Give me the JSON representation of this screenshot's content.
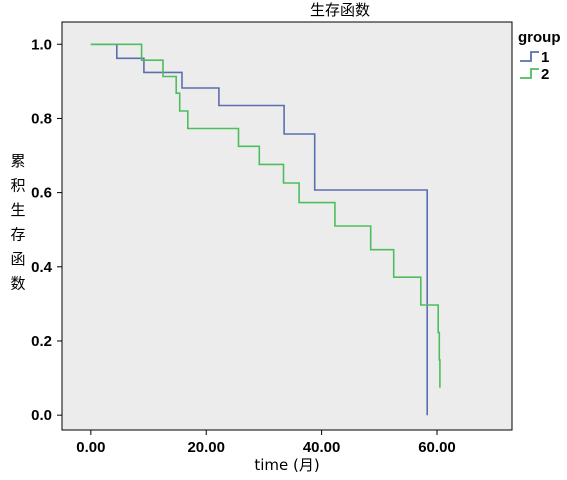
{
  "chart_data": {
    "type": "line",
    "title": "生存函数",
    "xlabel": "time (月)",
    "ylabel": "累积生存函数",
    "xlim": [
      -5,
      73
    ],
    "ylim": [
      -0.04,
      1.06
    ],
    "x_ticks": [
      "0.00",
      "20.00",
      "40.00",
      "60.00"
    ],
    "x_tick_values": [
      0,
      20,
      40,
      60
    ],
    "y_ticks": [
      "0.0",
      "0.2",
      "0.4",
      "0.6",
      "0.8",
      "1.0"
    ],
    "y_tick_values": [
      0,
      0.2,
      0.4,
      0.6,
      0.8,
      1.0
    ],
    "grid": false,
    "legend_position": "right",
    "legend_title": "group",
    "series": [
      {
        "name": "1",
        "color": "#5b6fb0",
        "x": [
          0,
          4.5,
          9,
          9.2,
          15.8,
          22.2,
          33.5,
          38.8,
          58.3,
          58.3
        ],
        "y": [
          1.0,
          0.962,
          0.962,
          0.924,
          0.882,
          0.835,
          0.758,
          0.607,
          0.607,
          0.0
        ]
      },
      {
        "name": "2",
        "color": "#4cbf5c",
        "x": [
          0,
          8.8,
          12.5,
          14.8,
          15.4,
          16.8,
          25.6,
          29.2,
          33.4,
          36.1,
          42.3,
          48.5,
          52.5,
          57.2,
          60,
          60.2,
          60.4,
          60.5
        ],
        "y": [
          1.0,
          0.957,
          0.913,
          0.868,
          0.82,
          0.773,
          0.725,
          0.676,
          0.626,
          0.573,
          0.51,
          0.446,
          0.372,
          0.297,
          0.297,
          0.223,
          0.149,
          0.074
        ]
      }
    ]
  }
}
